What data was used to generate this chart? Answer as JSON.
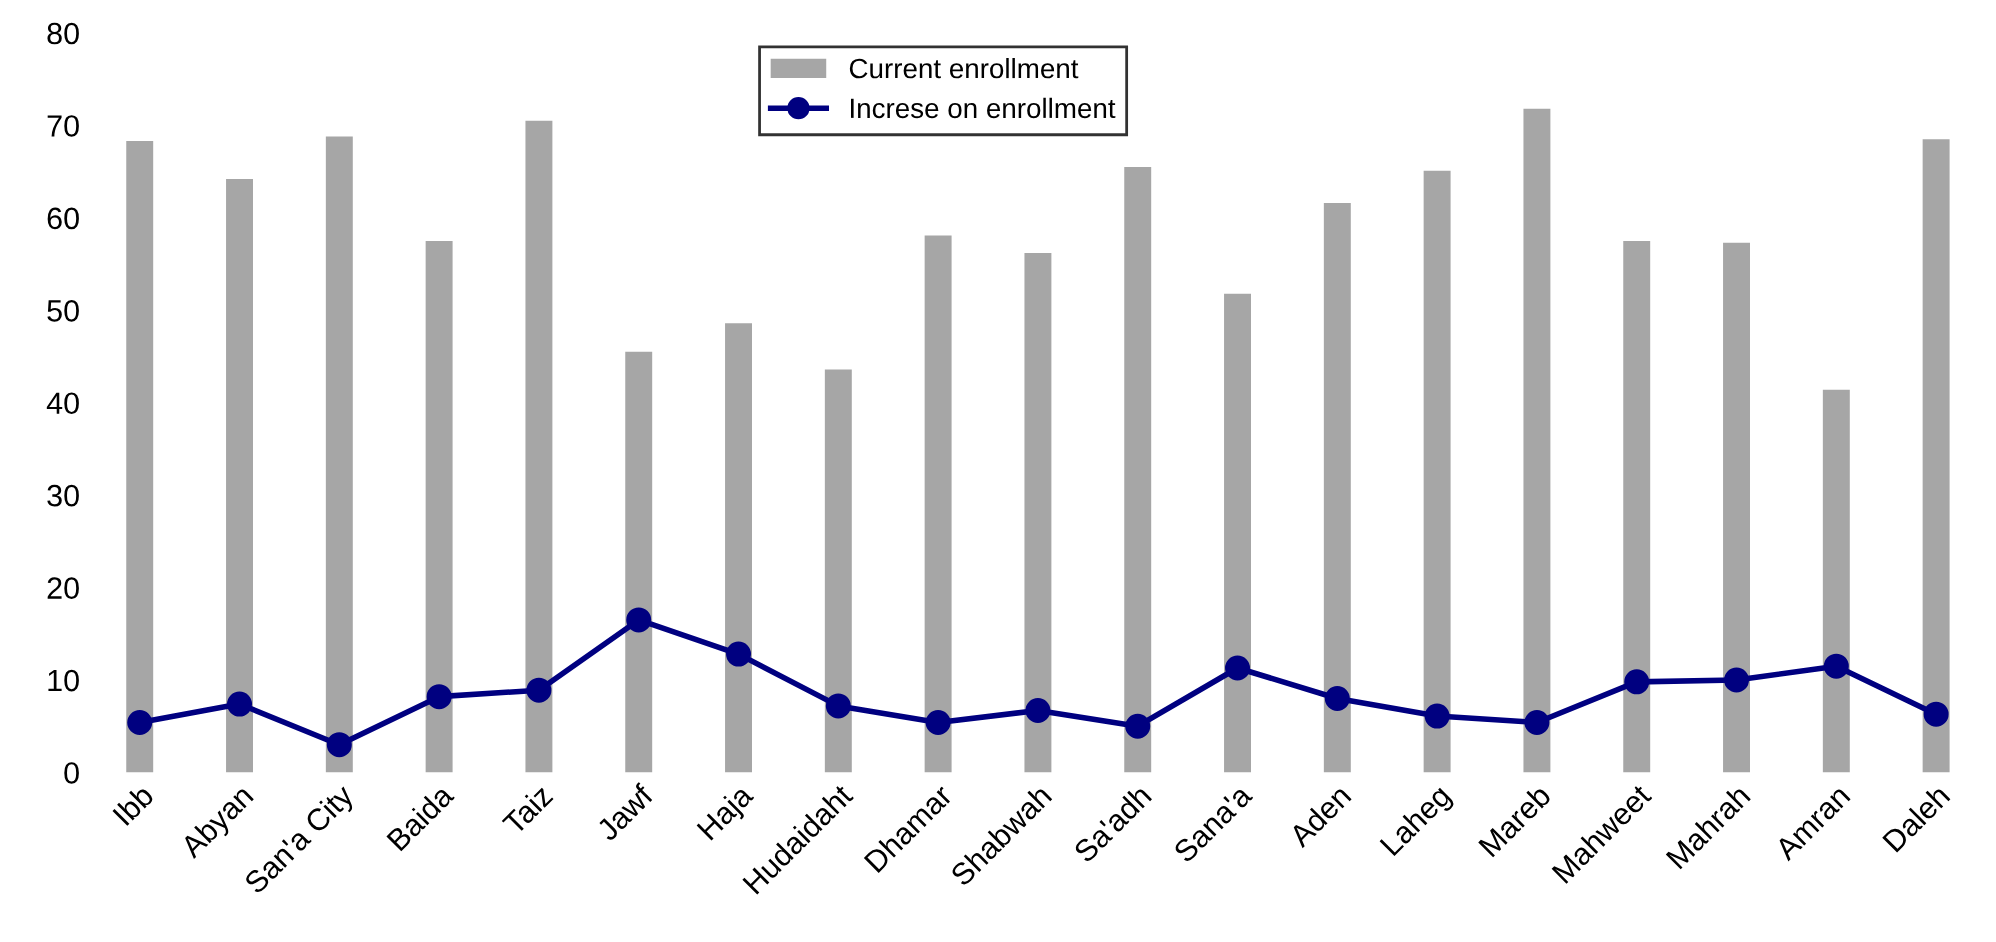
{
  "chart_data": {
    "type": "bar",
    "categories": [
      "Ibb",
      "Abyan",
      "San'a City",
      "Baida",
      "Taiz",
      "Jawf",
      "Haja",
      "Hudaidaht",
      "Dhamar",
      "Shabwah",
      "Sa'adh",
      "Sana'a",
      "Aden",
      "Laheg",
      "Mareb",
      "Mahweet",
      "Mahrah",
      "Amran",
      "Daleh"
    ],
    "series": [
      {
        "name": "Current enrollment",
        "color": "#a6a6a6",
        "values": [
          68.3,
          64.2,
          68.8,
          57.5,
          70.5,
          45.5,
          48.6,
          43.6,
          58.1,
          56.2,
          65.5,
          51.8,
          61.6,
          65.1,
          71.8,
          57.5,
          57.3,
          41.4,
          68.5
        ]
      },
      {
        "name": "Increse on enrollment",
        "type": "line",
        "color": "#000080",
        "marker": "circle",
        "values": [
          5.4,
          7.4,
          3.0,
          8.2,
          8.9,
          16.5,
          12.8,
          7.2,
          5.4,
          6.7,
          5.0,
          11.3,
          8.0,
          6.1,
          5.4,
          9.8,
          10.0,
          11.5,
          6.3
        ]
      }
    ],
    "ylim": [
      0,
      80
    ],
    "yticks": [
      0,
      10,
      20,
      30,
      40,
      50,
      60,
      70,
      80
    ],
    "grid": false,
    "legend": "top"
  }
}
